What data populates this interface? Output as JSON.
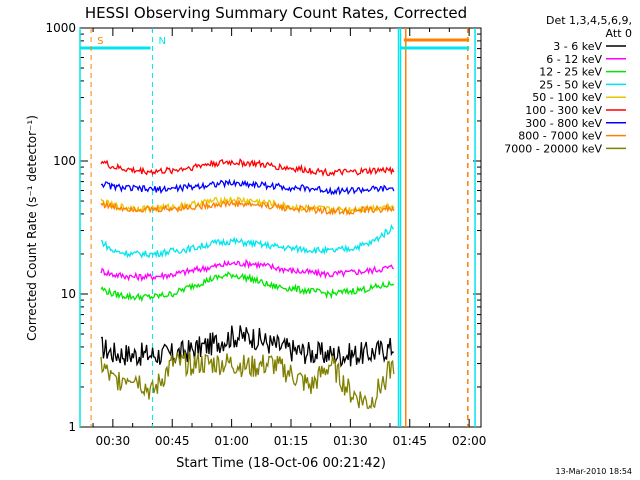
{
  "chart_data": {
    "type": "line",
    "title": "HESSI Observing Summary Count Rates, Corrected",
    "xlabel": "Start Time (18-Oct-06 00:21:42)",
    "ylabel": "Corrected Count Rate (s⁻¹ detector⁻¹)",
    "y_scale": "log",
    "ylim": [
      1,
      1000
    ],
    "xlim": [
      "00:21:42",
      "02:03:00"
    ],
    "xticks": [
      "00:30",
      "00:45",
      "01:00",
      "01:15",
      "01:30",
      "01:45",
      "02:00"
    ],
    "yticks": [
      "1",
      "10",
      "100",
      "1000"
    ],
    "grid": false,
    "legend_position": "right",
    "legend_title": [
      "Det 1,3,4,5,6,9,",
      "Att 0"
    ],
    "footer": "13-Mar-2010 18:54",
    "markers": [
      {
        "label": "S",
        "time": "00:24:30",
        "color": "#ff8000",
        "style": "dashed"
      },
      {
        "label": "N",
        "time": "00:40:00",
        "color": "#00e5ee",
        "style": "dashed"
      }
    ],
    "vertical_lines": [
      {
        "time": "00:21:42",
        "color": "#00e5ee"
      },
      {
        "time": "01:42:10",
        "color": "#00e5ee"
      },
      {
        "time": "01:42:40",
        "color": "#00e5ee"
      },
      {
        "time": "01:44:00",
        "color": "#ff8000"
      },
      {
        "time": "01:59:40",
        "color": "#ff8000",
        "style": "dashed"
      },
      {
        "time": "02:01:30",
        "color": "#00e5ee"
      }
    ],
    "bars": [
      {
        "name": "night",
        "from": "00:21:42",
        "to": "00:39:30",
        "color": "#00e5ee"
      },
      {
        "name": "night",
        "from": "01:42:30",
        "to": "02:00:00",
        "color": "#00e5ee"
      },
      {
        "name": "saa",
        "from": "01:43:30",
        "to": "02:00:00",
        "color": "#ff8000"
      }
    ],
    "x_times": [
      "00:27",
      "00:30",
      "00:35",
      "00:40",
      "00:45",
      "00:50",
      "00:55",
      "01:00",
      "01:05",
      "01:10",
      "01:15",
      "01:20",
      "01:25",
      "01:30",
      "01:35",
      "01:41"
    ],
    "series": [
      {
        "name": "3 - 6 keV",
        "color": "#000000",
        "values": [
          4.0,
          3.6,
          3.5,
          3.5,
          3.5,
          3.8,
          4.2,
          4.8,
          4.8,
          4.2,
          3.8,
          3.6,
          3.5,
          3.5,
          3.6,
          4.0
        ]
      },
      {
        "name": "6 - 12 keV",
        "color": "#ff00ff",
        "values": [
          15,
          14,
          13.5,
          13.5,
          14,
          15,
          16,
          17,
          17,
          16,
          15,
          14.5,
          14,
          14.5,
          15,
          16
        ]
      },
      {
        "name": "12 - 25 keV",
        "color": "#00e600",
        "values": [
          11,
          10,
          9.5,
          9.5,
          10,
          11.5,
          13,
          14,
          13,
          11.5,
          11,
          10.5,
          10,
          10.5,
          11,
          12
        ]
      },
      {
        "name": "25 - 50 keV",
        "color": "#00e5ee",
        "values": [
          25,
          21,
          20,
          20,
          21,
          22,
          24,
          25,
          24,
          23,
          22,
          21.5,
          21,
          22,
          24,
          32
        ]
      },
      {
        "name": "50 - 100 keV",
        "color": "#e6c800",
        "values": [
          50,
          46,
          44,
          44,
          45,
          47,
          50,
          51,
          50,
          48,
          45,
          44,
          43,
          43,
          44,
          46
        ]
      },
      {
        "name": "100 - 300 keV",
        "color": "#ff0000",
        "values": [
          100,
          90,
          85,
          83,
          85,
          90,
          96,
          98,
          96,
          92,
          88,
          85,
          82,
          82,
          84,
          86
        ]
      },
      {
        "name": "300 - 800 keV",
        "color": "#0000ff",
        "values": [
          68,
          64,
          62,
          61,
          62,
          64,
          67,
          68,
          67,
          65,
          63,
          62,
          60,
          60,
          61,
          62
        ]
      },
      {
        "name": "800 - 7000 keV",
        "color": "#ff8000",
        "values": [
          48,
          45,
          44,
          43,
          44,
          45,
          47,
          48,
          47,
          46,
          44,
          43,
          42,
          42,
          43,
          44
        ]
      },
      {
        "name": "7000 - 20000 keV",
        "color": "#808000",
        "values": [
          3.0,
          2.2,
          2.5,
          1.8,
          3.0,
          3.0,
          3.0,
          3.0,
          2.8,
          3.0,
          2.5,
          2.0,
          3.0,
          1.8,
          1.5,
          3.0
        ]
      }
    ]
  }
}
